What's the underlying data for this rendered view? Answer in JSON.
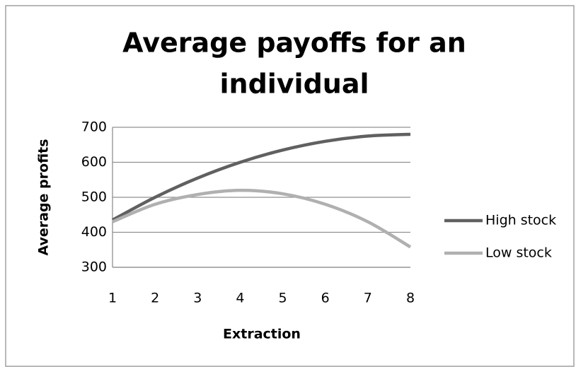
{
  "chart_data": {
    "type": "line",
    "title": [
      "Average payoffs for an",
      "individual"
    ],
    "x_label": "Extraction",
    "y_label": "Average profits",
    "x": [
      1,
      2,
      3,
      4,
      5,
      6,
      7,
      8
    ],
    "series": [
      {
        "name": "High stock",
        "color": "#606060",
        "values": [
          435,
          500,
          555,
          600,
          635,
          660,
          675,
          680
        ]
      },
      {
        "name": "Low stock",
        "color": "#b0b0b0",
        "values": [
          430,
          480,
          508,
          520,
          510,
          480,
          430,
          358
        ]
      }
    ],
    "xlim": [
      1,
      8
    ],
    "xticks": [
      1,
      2,
      3,
      4,
      5,
      6,
      7,
      8
    ],
    "ylim": [
      300,
      700
    ],
    "yticks": [
      300,
      400,
      500,
      600,
      700
    ],
    "grid": true,
    "smooth": true,
    "legend": "right"
  }
}
